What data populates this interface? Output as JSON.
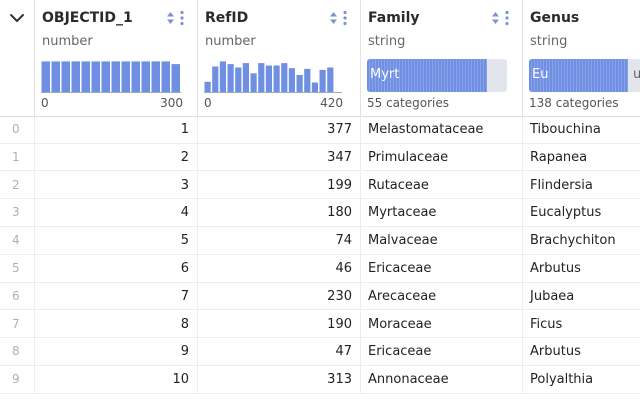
{
  "columns": [
    {
      "name": "OBJECTID_1",
      "type": "number",
      "axis_min": "0",
      "axis_max": "300",
      "hist": [
        0.9,
        0.9,
        0.9,
        0.9,
        0.9,
        0.9,
        0.9,
        0.9,
        0.9,
        0.9,
        0.9,
        0.9,
        0.9,
        0.82
      ]
    },
    {
      "name": "RefID",
      "type": "number",
      "axis_min": "0",
      "axis_max": "420",
      "hist": [
        0.3,
        0.75,
        0.9,
        0.82,
        0.72,
        0.85,
        0.55,
        0.85,
        0.78,
        0.78,
        0.85,
        0.7,
        0.5,
        0.68,
        0.28,
        0.65,
        0.72,
        0.0
      ]
    },
    {
      "name": "Family",
      "type": "string",
      "top_label": "Myrt",
      "fill": 0.86,
      "categories": "55 categories"
    },
    {
      "name": "Genus",
      "type": "string",
      "top_label": "Eu",
      "tail_label": "u",
      "fill": 0.88,
      "categories": "138 categories"
    }
  ],
  "rows": [
    {
      "idx": "0",
      "objectid": "1",
      "refid": "377",
      "family": "Melastomataceae",
      "genus": "Tibouchina"
    },
    {
      "idx": "1",
      "objectid": "2",
      "refid": "347",
      "family": "Primulaceae",
      "genus": "Rapanea"
    },
    {
      "idx": "2",
      "objectid": "3",
      "refid": "199",
      "family": "Rutaceae",
      "genus": "Flindersia"
    },
    {
      "idx": "3",
      "objectid": "4",
      "refid": "180",
      "family": "Myrtaceae",
      "genus": "Eucalyptus"
    },
    {
      "idx": "4",
      "objectid": "5",
      "refid": "74",
      "family": "Malvaceae",
      "genus": "Brachychiton"
    },
    {
      "idx": "5",
      "objectid": "6",
      "refid": "46",
      "family": "Ericaceae",
      "genus": "Arbutus"
    },
    {
      "idx": "6",
      "objectid": "7",
      "refid": "230",
      "family": "Arecaceae",
      "genus": "Jubaea"
    },
    {
      "idx": "7",
      "objectid": "8",
      "refid": "190",
      "family": "Moraceae",
      "genus": "Ficus"
    },
    {
      "idx": "8",
      "objectid": "9",
      "refid": "47",
      "family": "Ericaceae",
      "genus": "Arbutus"
    },
    {
      "idx": "9",
      "objectid": "10",
      "refid": "313",
      "family": "Annonaceae",
      "genus": "Polyalthia"
    }
  ],
  "colors": {
    "accent": "#6f8fe3",
    "icon": "#7d93cf"
  },
  "icons": {
    "collapse": "chevron-down-icon",
    "sort": "sort-icon",
    "menu": "kebab-menu-icon"
  }
}
